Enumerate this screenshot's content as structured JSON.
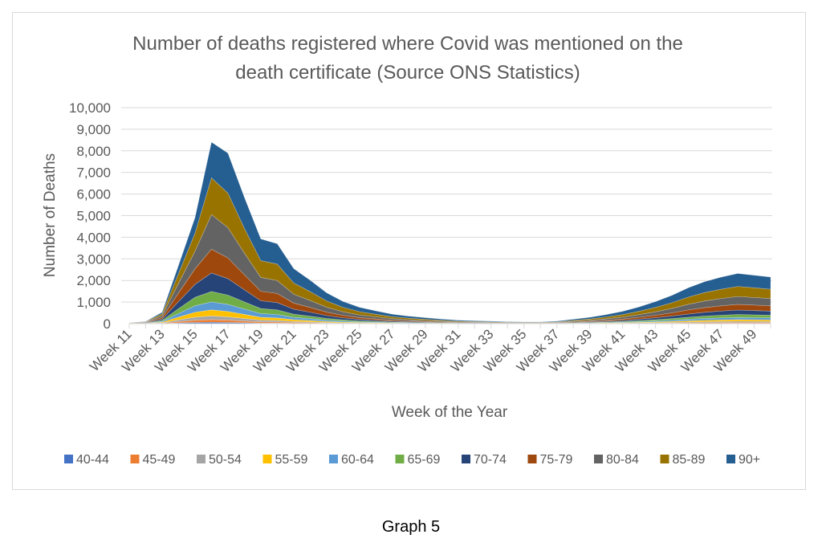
{
  "caption": "Graph 5",
  "chart_data": {
    "type": "area",
    "stacked": true,
    "title": "Number of deaths registered where Covid was mentioned on the death certificate (Source ONS Statistics)",
    "title_lines": [
      "Number of deaths registered where Covid was mentioned on the",
      "death certificate (Source ONS Statistics)"
    ],
    "xlabel": "Week of the Year",
    "ylabel": "Number of Deaths",
    "ylim": [
      0,
      10000
    ],
    "yticks": [
      0,
      1000,
      2000,
      3000,
      4000,
      5000,
      6000,
      7000,
      8000,
      9000,
      10000
    ],
    "ytick_labels": [
      "0",
      "1,000",
      "2,000",
      "3,000",
      "4,000",
      "5,000",
      "6,000",
      "7,000",
      "8,000",
      "9,000",
      "10,000"
    ],
    "grid": true,
    "legend_position": "bottom",
    "x": [
      "Week 11",
      "Week 12",
      "Week 13",
      "Week 14",
      "Week 15",
      "Week 16",
      "Week 17",
      "Week 18",
      "Week 19",
      "Week 20",
      "Week 21",
      "Week 22",
      "Week 23",
      "Week 24",
      "Week 25",
      "Week 26",
      "Week 27",
      "Week 28",
      "Week 29",
      "Week 30",
      "Week 31",
      "Week 32",
      "Week 33",
      "Week 34",
      "Week 35",
      "Week 36",
      "Week 37",
      "Week 38",
      "Week 39",
      "Week 40",
      "Week 41",
      "Week 42",
      "Week 43",
      "Week 44",
      "Week 45",
      "Week 46",
      "Week 47",
      "Week 48",
      "Week 49",
      "Week 50"
    ],
    "xtick_labels_shown": [
      "Week 11",
      "Week 13",
      "Week 15",
      "Week 17",
      "Week 19",
      "Week 21",
      "Week 23",
      "Week 25",
      "Week 27",
      "Week 29",
      "Week 31",
      "Week 33",
      "Week 35",
      "Week 37",
      "Week 39",
      "Week 41",
      "Week 43",
      "Week 45",
      "Week 47",
      "Week 49"
    ],
    "series": [
      {
        "name": "40-44",
        "color": "#4472C4",
        "values": [
          1,
          2,
          10,
          35,
          60,
          70,
          60,
          45,
          30,
          28,
          18,
          14,
          10,
          7,
          5,
          4,
          3,
          2,
          2,
          1,
          1,
          1,
          1,
          1,
          1,
          1,
          1,
          2,
          3,
          4,
          5,
          7,
          9,
          12,
          15,
          18,
          20,
          22,
          21,
          20
        ]
      },
      {
        "name": "45-49",
        "color": "#ED7D31",
        "values": [
          1,
          3,
          15,
          60,
          100,
          120,
          105,
          80,
          55,
          50,
          35,
          28,
          20,
          14,
          10,
          8,
          6,
          5,
          4,
          3,
          2,
          2,
          2,
          1,
          1,
          1,
          2,
          3,
          5,
          7,
          9,
          12,
          16,
          20,
          26,
          30,
          33,
          36,
          34,
          32
        ]
      },
      {
        "name": "50-54",
        "color": "#A5A5A5",
        "values": [
          1,
          4,
          20,
          80,
          140,
          170,
          150,
          115,
          80,
          72,
          50,
          40,
          28,
          20,
          15,
          12,
          9,
          7,
          6,
          4,
          3,
          3,
          2,
          2,
          2,
          2,
          3,
          5,
          7,
          10,
          13,
          18,
          24,
          30,
          38,
          45,
          50,
          54,
          52,
          50
        ]
      },
      {
        "name": "55-59",
        "color": "#FFC000",
        "values": [
          2,
          6,
          30,
          130,
          230,
          280,
          250,
          190,
          130,
          118,
          82,
          65,
          46,
          33,
          24,
          19,
          14,
          11,
          9,
          7,
          5,
          4,
          4,
          3,
          3,
          3,
          4,
          7,
          10,
          14,
          19,
          26,
          34,
          44,
          55,
          65,
          72,
          78,
          75,
          72
        ]
      },
      {
        "name": "60-64",
        "color": "#5B9BD5",
        "values": [
          2,
          7,
          35,
          170,
          300,
          370,
          330,
          250,
          175,
          160,
          110,
          88,
          62,
          45,
          33,
          26,
          19,
          15,
          12,
          9,
          7,
          6,
          5,
          4,
          4,
          4,
          5,
          9,
          13,
          18,
          25,
          34,
          44,
          57,
          72,
          85,
          95,
          102,
          98,
          95
        ]
      },
      {
        "name": "65-69",
        "color": "#70AD47",
        "values": [
          3,
          8,
          45,
          220,
          390,
          480,
          430,
          330,
          230,
          210,
          145,
          115,
          82,
          59,
          43,
          34,
          25,
          20,
          16,
          12,
          9,
          8,
          7,
          5,
          5,
          5,
          7,
          12,
          17,
          24,
          33,
          45,
          58,
          75,
          95,
          112,
          125,
          135,
          130,
          125
        ]
      },
      {
        "name": "70-74",
        "color": "#264478",
        "values": [
          4,
          12,
          60,
          330,
          600,
          860,
          760,
          560,
          360,
          340,
          230,
          180,
          128,
          92,
          68,
          53,
          39,
          31,
          25,
          19,
          14,
          12,
          10,
          8,
          7,
          7,
          10,
          18,
          26,
          37,
          50,
          68,
          90,
          116,
          147,
          172,
          190,
          205,
          198,
          190
        ]
      },
      {
        "name": "75-79",
        "color": "#9E480E",
        "values": [
          5,
          14,
          75,
          400,
          720,
          1100,
          960,
          700,
          440,
          420,
          285,
          225,
          160,
          115,
          85,
          66,
          49,
          39,
          31,
          24,
          18,
          15,
          13,
          10,
          9,
          9,
          13,
          23,
          33,
          47,
          64,
          87,
          115,
          148,
          188,
          220,
          243,
          262,
          253,
          243
        ]
      },
      {
        "name": "80-84",
        "color": "#636363",
        "values": [
          6,
          16,
          85,
          450,
          820,
          1600,
          1400,
          1000,
          640,
          600,
          410,
          320,
          228,
          164,
          121,
          94,
          70,
          55,
          44,
          34,
          25,
          21,
          18,
          14,
          12,
          12,
          18,
          32,
          46,
          66,
          90,
          122,
          160,
          206,
          262,
          306,
          338,
          365,
          352,
          338
        ]
      },
      {
        "name": "85-89",
        "color": "#997300",
        "values": [
          6,
          16,
          85,
          450,
          830,
          1700,
          1600,
          1150,
          780,
          760,
          520,
          410,
          290,
          208,
          154,
          120,
          89,
          70,
          56,
          43,
          32,
          27,
          23,
          18,
          16,
          16,
          23,
          41,
          58,
          84,
          114,
          155,
          205,
          263,
          334,
          390,
          431,
          465,
          449,
          431
        ]
      },
      {
        "name": "90+",
        "color": "#255E91",
        "values": [
          5,
          14,
          70,
          380,
          720,
          1650,
          1850,
          1430,
          1000,
          940,
          665,
          525,
          375,
          270,
          200,
          156,
          116,
          92,
          73,
          56,
          42,
          35,
          30,
          24,
          20,
          20,
          30,
          52,
          75,
          108,
          148,
          201,
          265,
          340,
          433,
          505,
          558,
          600,
          580,
          560
        ]
      }
    ]
  }
}
